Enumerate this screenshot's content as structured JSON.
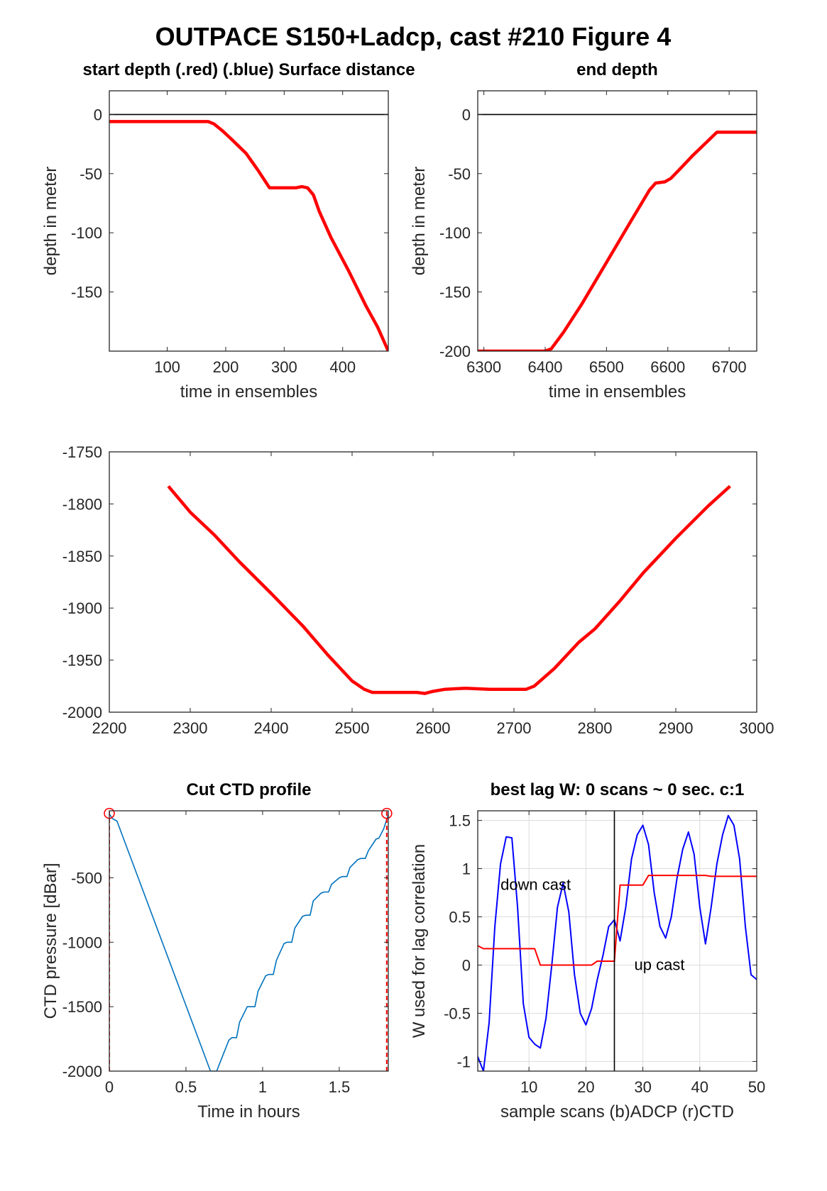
{
  "figure_title": "OUTPACE S150+Ladcp, cast #210    Figure 4",
  "chart_data": [
    {
      "id": "start",
      "type": "line",
      "title": "start depth (.red) (.blue) Surface distance",
      "xlabel": "time in ensembles",
      "ylabel": "depth in meter",
      "xlim": [
        1,
        478
      ],
      "ylim": [
        -200,
        20
      ],
      "xticks": [
        100,
        200,
        300,
        400
      ],
      "yticks": [
        0,
        -50,
        -100,
        -150
      ],
      "grid": false,
      "series": [
        {
          "color": "#ff0000",
          "x": [
            1,
            100,
            170,
            180,
            195,
            210,
            235,
            255,
            275,
            300,
            320,
            330,
            340,
            350,
            360,
            380,
            410,
            440,
            460,
            478
          ],
          "y": [
            -6,
            -6,
            -6,
            -8,
            -14,
            -21,
            -33,
            -47,
            -62,
            -62,
            -62,
            -61,
            -62,
            -68,
            -82,
            -104,
            -132,
            -162,
            -180,
            -200
          ]
        },
        {
          "color": "#000000",
          "x": [
            1,
            478
          ],
          "y": [
            0,
            0
          ]
        }
      ]
    },
    {
      "id": "end",
      "type": "line",
      "title": "end depth",
      "xlabel": "time in ensembles",
      "ylabel": "depth in meter",
      "xlim": [
        6290,
        6745
      ],
      "ylim": [
        -200,
        20
      ],
      "xticks": [
        6300,
        6400,
        6500,
        6600,
        6700
      ],
      "yticks": [
        0,
        -50,
        -100,
        -150,
        -200
      ],
      "grid": false,
      "series": [
        {
          "color": "#ff0000",
          "x": [
            6290,
            6320,
            6350,
            6390,
            6400,
            6410,
            6430,
            6460,
            6500,
            6540,
            6570,
            6580,
            6595,
            6605,
            6620,
            6640,
            6660,
            6680,
            6700,
            6720,
            6745
          ],
          "y": [
            -200,
            -200,
            -200,
            -200,
            -200,
            -198,
            -184,
            -160,
            -125,
            -90,
            -64,
            -58,
            -57,
            -54,
            -46,
            -35,
            -25,
            -15,
            -15,
            -15,
            -15
          ]
        },
        {
          "color": "#000000",
          "x": [
            6290,
            6745
          ],
          "y": [
            0,
            0
          ]
        }
      ]
    },
    {
      "id": "bottom",
      "type": "line",
      "title": "",
      "xlabel": "",
      "ylabel": "",
      "xlim": [
        2200,
        3000
      ],
      "ylim": [
        -2000,
        -1750
      ],
      "xticks": [
        2200,
        2300,
        2400,
        2500,
        2600,
        2700,
        2800,
        2900,
        3000
      ],
      "yticks": [
        -1750,
        -1800,
        -1850,
        -1900,
        -1950,
        -2000
      ],
      "grid": false,
      "series": [
        {
          "color": "#ff0000",
          "x": [
            2273,
            2300,
            2330,
            2360,
            2400,
            2440,
            2470,
            2500,
            2515,
            2525,
            2550,
            2580,
            2590,
            2600,
            2615,
            2640,
            2670,
            2700,
            2715,
            2725,
            2750,
            2780,
            2800,
            2830,
            2860,
            2900,
            2940,
            2967
          ],
          "y": [
            -1783,
            -1808,
            -1830,
            -1855,
            -1886,
            -1918,
            -1945,
            -1970,
            -1978,
            -1981,
            -1981,
            -1981,
            -1982,
            -1980,
            -1978,
            -1977,
            -1978,
            -1978,
            -1978,
            -1975,
            -1958,
            -1933,
            -1920,
            -1894,
            -1866,
            -1833,
            -1802,
            -1783
          ]
        }
      ]
    },
    {
      "id": "ctd",
      "type": "line",
      "title": "Cut CTD profile",
      "xlabel": "Time in hours",
      "ylabel": "CTD pressure [dBar]",
      "xlim": [
        0,
        1.82
      ],
      "ylim": [
        -2000,
        20
      ],
      "xticks": [
        0,
        0.5,
        1,
        1.5
      ],
      "yticks": [
        -500,
        -1000,
        -1500,
        -2000
      ],
      "grid": false,
      "series": [
        {
          "color": "#0072bd",
          "x": [
            0,
            0.02,
            0.05,
            0.66,
            0.7,
            0.74,
            0.78,
            0.8,
            0.83,
            0.85,
            0.9,
            0.92,
            0.95,
            0.97,
            1.02,
            1.04,
            1.07,
            1.09,
            1.14,
            1.16,
            1.19,
            1.21,
            1.26,
            1.28,
            1.31,
            1.33,
            1.38,
            1.4,
            1.43,
            1.45,
            1.5,
            1.52,
            1.55,
            1.57,
            1.62,
            1.64,
            1.67,
            1.69,
            1.74,
            1.76,
            1.79,
            1.82
          ],
          "y": [
            -5,
            -40,
            -60,
            -2000,
            -2000,
            -1880,
            -1760,
            -1740,
            -1740,
            -1620,
            -1500,
            -1500,
            -1500,
            -1380,
            -1260,
            -1250,
            -1250,
            -1140,
            -1010,
            -1000,
            -1000,
            -890,
            -800,
            -790,
            -790,
            -680,
            -620,
            -610,
            -610,
            -550,
            -500,
            -490,
            -490,
            -420,
            -360,
            -350,
            -350,
            -290,
            -200,
            -190,
            -120,
            -10
          ]
        },
        {
          "color": "#ff0000",
          "dashed": true,
          "x": [
            0,
            0
          ],
          "y": [
            -2000,
            20
          ]
        },
        {
          "color": "#ff0000",
          "dashed": true,
          "x": [
            1.81,
            1.81
          ],
          "y": [
            -2000,
            20
          ]
        }
      ],
      "markers": [
        {
          "x": 0,
          "y": 0,
          "color": "#ff0000",
          "shape": "circle"
        },
        {
          "x": 1.81,
          "y": 0,
          "color": "#ff0000",
          "shape": "circle"
        }
      ]
    },
    {
      "id": "lag",
      "type": "line",
      "title": "best lag W: 0 scans ~ 0 sec.  c:1",
      "xlabel": "sample scans (b)ADCP (r)CTD",
      "ylabel": "W used for lag correlation",
      "xlim": [
        1,
        50
      ],
      "ylim": [
        -1.1,
        1.6
      ],
      "xticks": [
        10,
        20,
        30,
        40,
        50
      ],
      "yticks": [
        1.5,
        1,
        0.5,
        0,
        -0.5,
        -1
      ],
      "grid": true,
      "annotations": [
        {
          "text": "down cast",
          "x": 5,
          "y": 0.78
        },
        {
          "text": "up cast",
          "x": 28.5,
          "y": -0.05
        }
      ],
      "vline": 25,
      "series": [
        {
          "name": "ADCP",
          "color": "#0000ff",
          "x": [
            1,
            2,
            3,
            4,
            5,
            6,
            7,
            8,
            9,
            10,
            11,
            12,
            13,
            14,
            15,
            16,
            17,
            18,
            19,
            20,
            21,
            22,
            23,
            24,
            25,
            26,
            27,
            28,
            29,
            30,
            31,
            32,
            33,
            34,
            35,
            36,
            37,
            38,
            39,
            40,
            41,
            42,
            43,
            44,
            45,
            46,
            47,
            48,
            49,
            50
          ],
          "y": [
            -0.95,
            -1.1,
            -0.6,
            0.4,
            1.05,
            1.33,
            1.32,
            0.6,
            -0.4,
            -0.75,
            -0.82,
            -0.86,
            -0.55,
            0.0,
            0.6,
            0.85,
            0.55,
            -0.1,
            -0.5,
            -0.62,
            -0.45,
            -0.15,
            0.1,
            0.4,
            0.47,
            0.25,
            0.6,
            1.1,
            1.35,
            1.45,
            1.25,
            0.75,
            0.4,
            0.28,
            0.5,
            0.9,
            1.2,
            1.38,
            1.15,
            0.6,
            0.22,
            0.6,
            1.05,
            1.35,
            1.55,
            1.45,
            1.1,
            0.4,
            -0.1,
            -0.15
          ]
        },
        {
          "name": "CTD",
          "color": "#ff0000",
          "x": [
            1,
            2,
            3,
            4,
            5,
            6,
            7,
            8,
            9,
            10,
            11,
            12,
            13,
            14,
            15,
            16,
            17,
            18,
            19,
            20,
            21,
            22,
            23,
            24,
            25,
            26,
            27,
            28,
            29,
            30,
            31,
            32,
            33,
            34,
            35,
            36,
            37,
            38,
            39,
            40,
            41,
            42,
            43,
            44,
            45,
            46,
            47,
            48,
            49,
            50
          ],
          "y": [
            0.2,
            0.17,
            0.17,
            0.17,
            0.17,
            0.17,
            0.17,
            0.17,
            0.17,
            0.17,
            0.17,
            0.0,
            0.0,
            0.0,
            0.0,
            0.0,
            0.0,
            0.0,
            0.0,
            0.0,
            0.0,
            0.04,
            0.04,
            0.04,
            0.04,
            0.83,
            0.83,
            0.83,
            0.83,
            0.83,
            0.93,
            0.93,
            0.93,
            0.93,
            0.93,
            0.93,
            0.93,
            0.93,
            0.93,
            0.93,
            0.93,
            0.92,
            0.92,
            0.92,
            0.92,
            0.92,
            0.92,
            0.92,
            0.92,
            0.92
          ]
        }
      ]
    }
  ]
}
